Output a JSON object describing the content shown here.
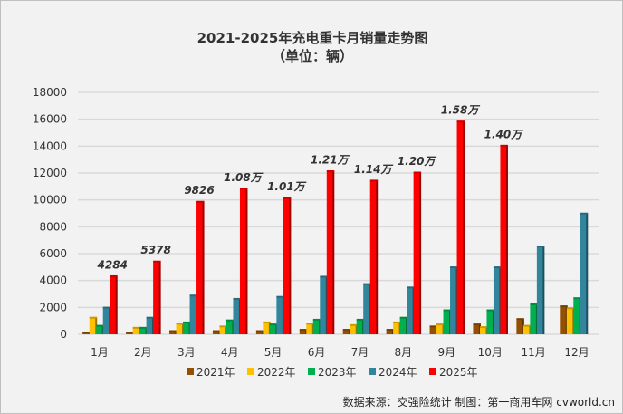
{
  "chart_data": {
    "type": "bar",
    "title": "2021-2025年充电重卡月销量走势图",
    "subtitle": "（单位：辆）",
    "xlabel": "",
    "ylabel": "",
    "ylim": [
      0,
      18000
    ],
    "yticks": [
      0,
      2000,
      4000,
      6000,
      8000,
      10000,
      12000,
      14000,
      16000,
      18000
    ],
    "grid": true,
    "legend": "bottom",
    "categories": [
      "1月",
      "2月",
      "3月",
      "4月",
      "5月",
      "6月",
      "7月",
      "8月",
      "9月",
      "10月",
      "11月",
      "12月"
    ],
    "series": [
      {
        "name": "2021年",
        "color": "#954f00",
        "values": [
          100,
          100,
          200,
          200,
          200,
          300,
          300,
          300,
          550,
          700,
          1100,
          2050
        ]
      },
      {
        "name": "2022年",
        "color": "#ffc000",
        "values": [
          1200,
          450,
          750,
          550,
          850,
          750,
          650,
          850,
          700,
          500,
          600,
          1900
        ]
      },
      {
        "name": "2023年",
        "color": "#00b050",
        "values": [
          600,
          450,
          850,
          1000,
          700,
          1050,
          1050,
          1200,
          1750,
          1750,
          2200,
          2650
        ]
      },
      {
        "name": "2024年",
        "color": "#31859c",
        "values": [
          1950,
          1200,
          2850,
          2600,
          2750,
          4250,
          3700,
          3450,
          4950,
          4950,
          6500,
          8950
        ]
      },
      {
        "name": "2025年",
        "color": "#ff0000",
        "values": [
          4284,
          5378,
          9826,
          10800,
          10100,
          12100,
          11400,
          12000,
          15800,
          14000,
          null,
          null
        ]
      }
    ],
    "data_labels": [
      "4284",
      "5378",
      "9826",
      "1.08万",
      "1.01万",
      "1.21万",
      "1.14万",
      "1.20万",
      "1.58万",
      "1.40万"
    ]
  },
  "source": "数据来源：交强险统计  制图：第一商用车网 cvworld.cn"
}
